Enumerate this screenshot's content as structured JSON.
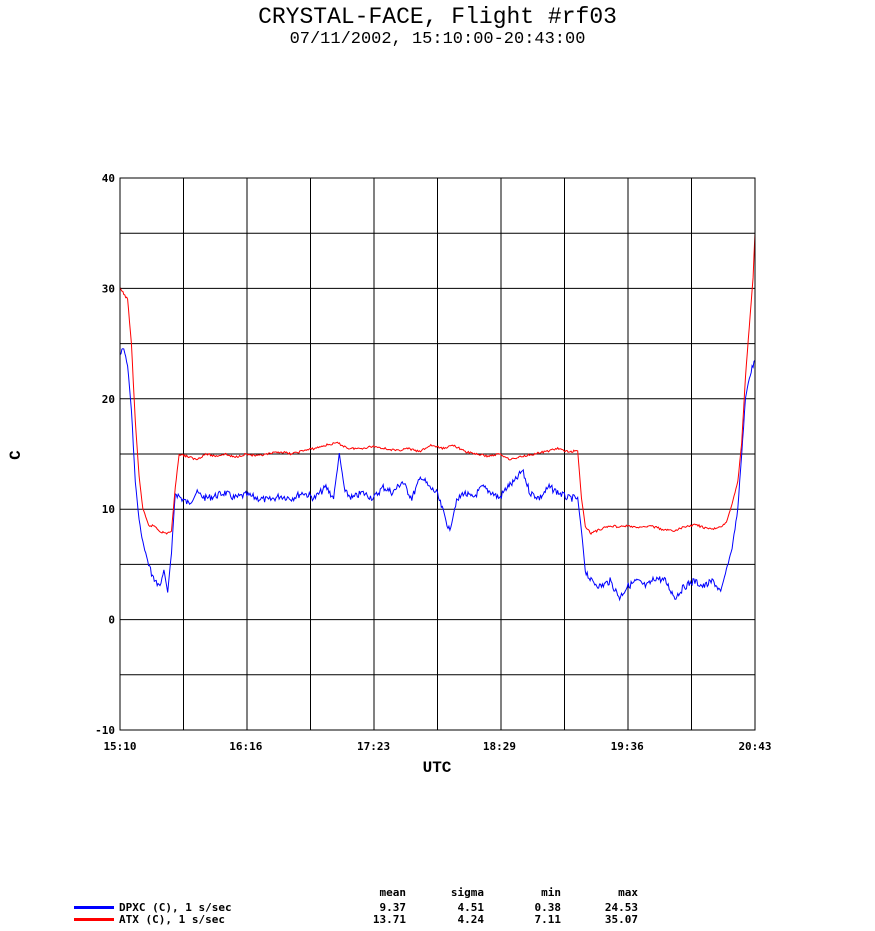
{
  "chart_data": {
    "type": "line",
    "title": "CRYSTAL-FACE, Flight #rf03",
    "subtitle": "07/11/2002, 15:10:00-20:43:00",
    "xlabel": "UTC",
    "ylabel": "C",
    "xlim": [
      "15:10",
      "20:43"
    ],
    "ylim": [
      -10,
      40
    ],
    "x_ticks": [
      "15:10",
      "16:16",
      "17:23",
      "18:29",
      "19:36",
      "20:43"
    ],
    "y_ticks": [
      40,
      30,
      20,
      10,
      0,
      -10
    ],
    "grid": true,
    "series": [
      {
        "name": "DPXC (C), 1 s/sec",
        "color": "#0000ff",
        "points": [
          [
            "15:10",
            24.0
          ],
          [
            "15:12",
            24.5
          ],
          [
            "15:14",
            23.0
          ],
          [
            "15:16",
            19.0
          ],
          [
            "15:18",
            12.5
          ],
          [
            "15:20",
            9.0
          ],
          [
            "15:22",
            7.0
          ],
          [
            "15:25",
            5.0
          ],
          [
            "15:28",
            3.5
          ],
          [
            "15:31",
            3.0
          ],
          [
            "15:33",
            4.5
          ],
          [
            "15:35",
            2.5
          ],
          [
            "15:37",
            6.0
          ],
          [
            "15:39",
            11.5
          ],
          [
            "15:42",
            11.0
          ],
          [
            "15:46",
            10.5
          ],
          [
            "15:50",
            11.5
          ],
          [
            "15:55",
            11.0
          ],
          [
            "16:00",
            11.2
          ],
          [
            "16:05",
            11.5
          ],
          [
            "16:10",
            11.0
          ],
          [
            "16:16",
            11.3
          ],
          [
            "16:22",
            11.0
          ],
          [
            "16:28",
            10.8
          ],
          [
            "16:34",
            11.2
          ],
          [
            "16:40",
            11.0
          ],
          [
            "16:46",
            11.5
          ],
          [
            "16:52",
            11.0
          ],
          [
            "16:58",
            12.0
          ],
          [
            "17:02",
            11.0
          ],
          [
            "17:05",
            15.0
          ],
          [
            "17:08",
            11.5
          ],
          [
            "17:12",
            11.0
          ],
          [
            "17:17",
            11.5
          ],
          [
            "17:23",
            11.0
          ],
          [
            "17:28",
            12.0
          ],
          [
            "17:33",
            11.5
          ],
          [
            "17:38",
            12.5
          ],
          [
            "17:43",
            11.0
          ],
          [
            "17:48",
            13.0
          ],
          [
            "17:52",
            12.0
          ],
          [
            "17:56",
            11.5
          ],
          [
            "18:00",
            9.5
          ],
          [
            "18:03",
            8.0
          ],
          [
            "18:06",
            10.5
          ],
          [
            "18:10",
            11.5
          ],
          [
            "18:15",
            11.0
          ],
          [
            "18:20",
            12.0
          ],
          [
            "18:25",
            11.5
          ],
          [
            "18:29",
            11.0
          ],
          [
            "18:33",
            12.0
          ],
          [
            "18:37",
            12.5
          ],
          [
            "18:41",
            13.5
          ],
          [
            "18:45",
            11.5
          ],
          [
            "18:50",
            11.0
          ],
          [
            "18:55",
            12.0
          ],
          [
            "19:00",
            11.5
          ],
          [
            "19:05",
            11.0
          ],
          [
            "19:10",
            11.0
          ],
          [
            "19:12",
            8.0
          ],
          [
            "19:14",
            4.5
          ],
          [
            "19:17",
            3.5
          ],
          [
            "19:22",
            3.0
          ],
          [
            "19:27",
            3.5
          ],
          [
            "19:32",
            2.0
          ],
          [
            "19:36",
            3.0
          ],
          [
            "19:41",
            3.5
          ],
          [
            "19:46",
            3.0
          ],
          [
            "19:51",
            3.8
          ],
          [
            "19:56",
            3.5
          ],
          [
            "20:01",
            2.0
          ],
          [
            "20:06",
            3.0
          ],
          [
            "20:11",
            3.5
          ],
          [
            "20:16",
            3.0
          ],
          [
            "20:21",
            3.5
          ],
          [
            "20:25",
            2.5
          ],
          [
            "20:28",
            4.5
          ],
          [
            "20:31",
            6.5
          ],
          [
            "20:34",
            10.0
          ],
          [
            "20:36",
            15.0
          ],
          [
            "20:38",
            20.0
          ],
          [
            "20:40",
            22.0
          ],
          [
            "20:43",
            23.5
          ]
        ]
      },
      {
        "name": "ATX (C), 1 s/sec",
        "color": "#ff0000",
        "points": [
          [
            "15:10",
            30.0
          ],
          [
            "15:12",
            29.5
          ],
          [
            "15:14",
            29.0
          ],
          [
            "15:16",
            25.0
          ],
          [
            "15:18",
            18.0
          ],
          [
            "15:20",
            13.0
          ],
          [
            "15:22",
            10.0
          ],
          [
            "15:25",
            8.5
          ],
          [
            "15:28",
            8.5
          ],
          [
            "15:31",
            8.0
          ],
          [
            "15:34",
            7.8
          ],
          [
            "15:37",
            8.0
          ],
          [
            "15:39",
            12.0
          ],
          [
            "15:41",
            15.0
          ],
          [
            "15:45",
            14.8
          ],
          [
            "15:50",
            14.5
          ],
          [
            "15:55",
            15.0
          ],
          [
            "16:00",
            14.8
          ],
          [
            "16:05",
            15.0
          ],
          [
            "16:10",
            14.7
          ],
          [
            "16:16",
            15.0
          ],
          [
            "16:22",
            14.8
          ],
          [
            "16:28",
            15.0
          ],
          [
            "16:34",
            15.2
          ],
          [
            "16:40",
            15.0
          ],
          [
            "16:46",
            15.3
          ],
          [
            "16:52",
            15.5
          ],
          [
            "16:58",
            15.8
          ],
          [
            "17:04",
            16.0
          ],
          [
            "17:10",
            15.5
          ],
          [
            "17:16",
            15.5
          ],
          [
            "17:23",
            15.7
          ],
          [
            "17:29",
            15.5
          ],
          [
            "17:35",
            15.3
          ],
          [
            "17:41",
            15.5
          ],
          [
            "17:47",
            15.2
          ],
          [
            "17:53",
            15.8
          ],
          [
            "17:59",
            15.5
          ],
          [
            "18:05",
            15.8
          ],
          [
            "18:11",
            15.2
          ],
          [
            "18:17",
            15.0
          ],
          [
            "18:23",
            14.8
          ],
          [
            "18:29",
            15.0
          ],
          [
            "18:35",
            14.5
          ],
          [
            "18:41",
            14.8
          ],
          [
            "18:47",
            15.0
          ],
          [
            "18:53",
            15.2
          ],
          [
            "18:59",
            15.5
          ],
          [
            "19:05",
            15.2
          ],
          [
            "19:10",
            15.3
          ],
          [
            "19:12",
            11.0
          ],
          [
            "19:14",
            8.5
          ],
          [
            "19:17",
            7.8
          ],
          [
            "19:22",
            8.2
          ],
          [
            "19:27",
            8.5
          ],
          [
            "19:32",
            8.4
          ],
          [
            "19:36",
            8.5
          ],
          [
            "19:42",
            8.3
          ],
          [
            "19:48",
            8.5
          ],
          [
            "19:54",
            8.2
          ],
          [
            "20:00",
            8.0
          ],
          [
            "20:06",
            8.4
          ],
          [
            "20:12",
            8.6
          ],
          [
            "20:18",
            8.2
          ],
          [
            "20:24",
            8.3
          ],
          [
            "20:28",
            8.8
          ],
          [
            "20:31",
            10.5
          ],
          [
            "20:34",
            12.5
          ],
          [
            "20:36",
            16.0
          ],
          [
            "20:38",
            22.0
          ],
          [
            "20:40",
            26.5
          ],
          [
            "20:42",
            31.0
          ],
          [
            "20:43",
            35.0
          ]
        ]
      }
    ],
    "stats": {
      "headers": [
        "mean",
        "sigma",
        "min",
        "max"
      ],
      "rows": [
        {
          "label": "DPXC (C), 1 s/sec",
          "color": "#0000ff",
          "values": [
            "9.37",
            "4.51",
            "0.38",
            "24.53"
          ]
        },
        {
          "label": "ATX (C), 1 s/sec",
          "color": "#ff0000",
          "values": [
            "13.71",
            "4.24",
            "7.11",
            "35.07"
          ]
        }
      ]
    }
  }
}
